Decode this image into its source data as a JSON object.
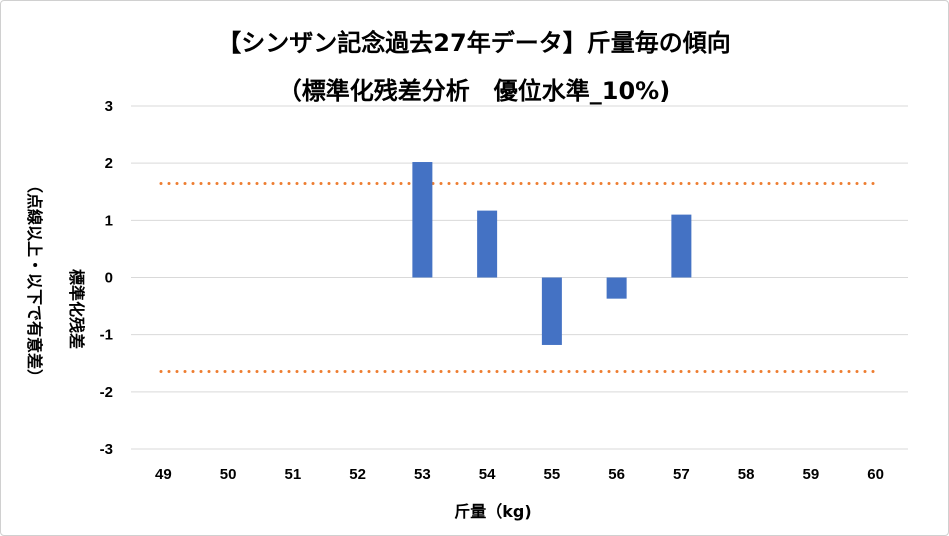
{
  "chart_data": {
    "type": "bar",
    "title": "【シンザン記念過去27年データ】斤量毎の傾向",
    "subtitle": "（標準化残差分析　優位水準_10%)",
    "xlabel": "斤量（kg)",
    "ylabel_line1": "標準化残差",
    "ylabel_line2": "（点線以上・以下で有意差）",
    "categories": [
      "49",
      "50",
      "51",
      "52",
      "53",
      "54",
      "55",
      "56",
      "57",
      "58",
      "59",
      "60"
    ],
    "values": [
      null,
      null,
      null,
      null,
      2.02,
      1.17,
      -1.18,
      -0.37,
      1.1,
      null,
      null,
      null
    ],
    "ylim": [
      -3,
      3
    ],
    "yticks": [
      3,
      2,
      1,
      0,
      -1,
      -2,
      -3
    ],
    "threshold_lines": [
      1.645,
      -1.645
    ],
    "bar_color": "#4472C4",
    "threshold_color": "#ED7D31",
    "grid_color": "#D9D9D9",
    "grid": true,
    "legend": "none"
  }
}
